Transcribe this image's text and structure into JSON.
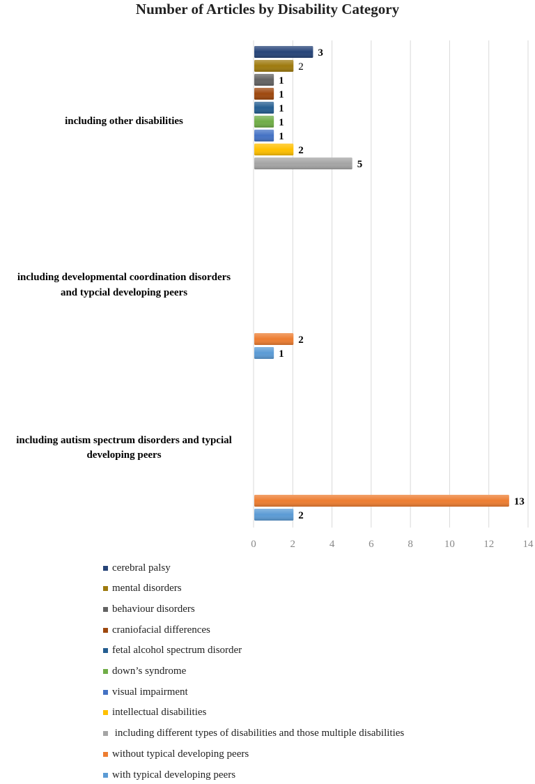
{
  "chart_data": {
    "type": "bar",
    "orientation": "horizontal",
    "title": "Number of Articles by Disability Category",
    "xlim": [
      0,
      14
    ],
    "x_ticks": [
      "0",
      "2",
      "4",
      "6",
      "8",
      "10",
      "12",
      "14"
    ],
    "grid": true,
    "categories": [
      "including other disabilities",
      "including developmental coordination disorders and typcial developing peers",
      "including autism spectrum disorders and typcial developing peers"
    ],
    "category_lines": [
      [
        "including other disabilities"
      ],
      [
        "including developmental coordination disorders",
        "and typcial developing peers"
      ],
      [
        "including autism spectrum disorders and typcial",
        "developing peers"
      ]
    ],
    "series": [
      {
        "name": "cerebral palsy",
        "color": "#264478",
        "values": [
          3,
          null,
          null
        ]
      },
      {
        "name": "mental disorders",
        "color": "#9E7A0E",
        "values": [
          2,
          null,
          null
        ]
      },
      {
        "name": "behaviour disorders",
        "color": "#636363",
        "values": [
          1,
          null,
          null
        ]
      },
      {
        "name": "craniofacial differences",
        "color": "#9E480E",
        "values": [
          1,
          null,
          null
        ]
      },
      {
        "name": "fetal alcohol spectrum disorder",
        "color": "#255E91",
        "values": [
          1,
          null,
          null
        ]
      },
      {
        "name": "down’s syndrome",
        "color": "#70AD47",
        "values": [
          1,
          null,
          null
        ]
      },
      {
        "name": "visual impairment",
        "color": "#4472C4",
        "values": [
          1,
          null,
          null
        ]
      },
      {
        "name": "intellectual disabilities",
        "color": "#FFC000",
        "values": [
          2,
          null,
          null
        ]
      },
      {
        "name": " including different types of disabilities and those multiple disabilities",
        "color": "#A5A5A5",
        "values": [
          5,
          null,
          null
        ]
      },
      {
        "name": "without typical developing peers",
        "color": "#ED7D31",
        "values": [
          null,
          2,
          13
        ]
      },
      {
        "name": "with typical developing peers",
        "color": "#5B9BD5",
        "values": [
          null,
          1,
          2
        ]
      }
    ],
    "legend_position": "bottom"
  }
}
